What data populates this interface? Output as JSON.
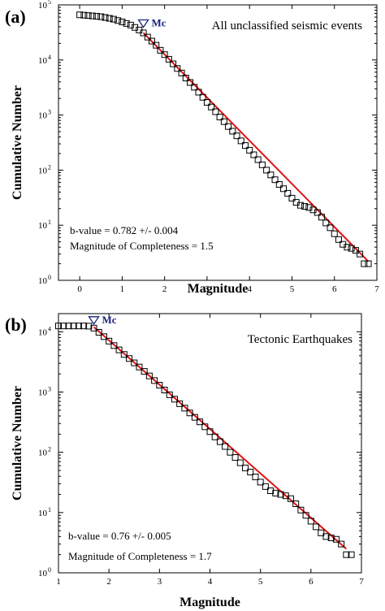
{
  "chart_data": [
    {
      "type": "scatter",
      "panel_label": "(a)",
      "title": "All unclassified seismic events",
      "xlabel": "Magnitude",
      "ylabel": "Cumulative Number",
      "xlim": [
        -0.5,
        7
      ],
      "ylim": [
        1,
        100000
      ],
      "y_scale": "log",
      "x_ticks": [
        "0",
        "1",
        "2",
        "3",
        "4",
        "5",
        "6",
        "7"
      ],
      "y_ticks": [
        "10",
        "10",
        "10",
        "10",
        "10",
        "10"
      ],
      "y_tick_exponents": [
        "0",
        "1",
        "2",
        "3",
        "4",
        "5"
      ],
      "mc_label": "Mc",
      "mc": 1.5,
      "annotations": [
        "b-value = 0.782 +/- 0.004",
        "Magnitude of Completeness = 1.5"
      ],
      "series": [
        {
          "x": [
            0.0,
            0.1,
            0.2,
            0.3,
            0.4,
            0.5,
            0.6,
            0.7,
            0.8,
            0.9,
            1.0,
            1.1,
            1.2,
            1.3,
            1.4,
            1.5,
            1.6,
            1.7,
            1.8,
            1.9,
            2.0,
            2.1,
            2.2,
            2.3,
            2.4,
            2.5,
            2.6,
            2.7,
            2.8,
            2.9,
            3.0,
            3.1,
            3.2,
            3.3,
            3.4,
            3.5,
            3.6,
            3.7,
            3.8,
            3.9,
            4.0,
            4.1,
            4.2,
            4.3,
            4.4,
            4.5,
            4.6,
            4.7,
            4.8,
            4.9,
            5.0,
            5.1,
            5.2,
            5.3,
            5.4,
            5.5,
            5.6,
            5.7,
            5.8,
            5.9,
            6.0,
            6.1,
            6.2,
            6.3,
            6.4,
            6.5,
            6.6,
            6.7,
            6.8
          ],
          "y": [
            66000,
            65000,
            64000,
            63000,
            62000,
            61000,
            59000,
            57000,
            55000,
            52000,
            49000,
            46000,
            43000,
            39000,
            35000,
            31000,
            26000,
            22000,
            18500,
            15000,
            12500,
            10300,
            8500,
            7000,
            5800,
            4700,
            3900,
            3200,
            2600,
            2100,
            1700,
            1400,
            1150,
            920,
            760,
            620,
            510,
            420,
            340,
            280,
            230,
            190,
            155,
            125,
            100,
            82,
            67,
            55,
            46,
            38,
            31,
            26,
            23,
            22,
            21,
            19,
            17,
            14,
            11,
            9,
            7,
            5.5,
            4.5,
            4,
            3.8,
            3.5,
            3,
            2,
            2
          ]
        }
      ],
      "fit": {
        "color": "#e01010",
        "x": [
          1.5,
          6.8
        ],
        "y": [
          31000,
          2.2
        ]
      }
    },
    {
      "type": "scatter",
      "panel_label": "(b)",
      "title": "Tectonic Earthquakes",
      "xlabel": "Magnitude",
      "ylabel": "Cumulative Number",
      "xlim": [
        1,
        7
      ],
      "ylim": [
        1,
        20000
      ],
      "y_scale": "log",
      "x_ticks": [
        "1",
        "2",
        "3",
        "4",
        "5",
        "6",
        "7"
      ],
      "y_ticks": [
        "10",
        "10",
        "10",
        "10",
        "10"
      ],
      "y_tick_exponents": [
        "0",
        "1",
        "2",
        "3",
        "4"
      ],
      "mc_label": "Mc",
      "mc": 1.7,
      "annotations": [
        "b-value = 0.76 +/- 0.005",
        "Magnitude of Completeness = 1.7"
      ],
      "series": [
        {
          "x": [
            1.0,
            1.1,
            1.2,
            1.3,
            1.4,
            1.5,
            1.6,
            1.7,
            1.8,
            1.9,
            2.0,
            2.1,
            2.2,
            2.3,
            2.4,
            2.5,
            2.6,
            2.7,
            2.8,
            2.9,
            3.0,
            3.1,
            3.2,
            3.3,
            3.4,
            3.5,
            3.6,
            3.7,
            3.8,
            3.9,
            4.0,
            4.1,
            4.2,
            4.3,
            4.4,
            4.5,
            4.6,
            4.7,
            4.8,
            4.9,
            5.0,
            5.1,
            5.2,
            5.3,
            5.4,
            5.5,
            5.6,
            5.7,
            5.8,
            5.9,
            6.0,
            6.1,
            6.2,
            6.3,
            6.4,
            6.5,
            6.6,
            6.7,
            6.8
          ],
          "y": [
            12500,
            12500,
            12500,
            12500,
            12500,
            12500,
            12400,
            11500,
            9800,
            8300,
            7000,
            5900,
            5000,
            4200,
            3600,
            3050,
            2600,
            2200,
            1850,
            1550,
            1300,
            1080,
            900,
            760,
            640,
            540,
            450,
            380,
            320,
            265,
            220,
            180,
            150,
            125,
            100,
            82,
            67,
            55,
            47,
            39,
            32,
            27,
            23,
            21,
            20,
            19,
            17,
            14,
            11,
            9,
            7.2,
            5.8,
            4.6,
            4,
            3.8,
            3.6,
            3,
            2,
            2
          ]
        }
      ],
      "fit": {
        "color": "#e01010",
        "x": [
          1.7,
          6.7
        ],
        "y": [
          12000,
          2.5
        ]
      }
    }
  ]
}
